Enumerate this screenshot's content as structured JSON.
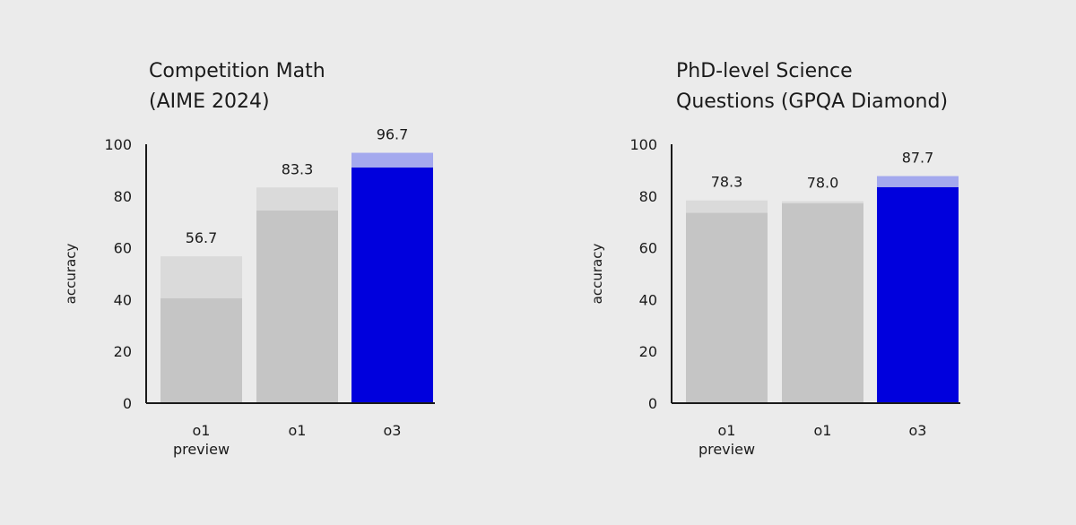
{
  "colors": {
    "background": "#ebebeb",
    "grey_base": "#c5c5c5",
    "grey_top": "#dadada",
    "highlight_base": "#0000dd",
    "highlight_top": "#a4a9ee",
    "axis": "#1a1a1a"
  },
  "chart_data": [
    {
      "type": "bar",
      "title": [
        "Competition Math",
        "(AIME 2024)"
      ],
      "ylabel": "accuracy",
      "ylim": [
        0,
        100
      ],
      "yticks": [
        0,
        20,
        40,
        60,
        80,
        100
      ],
      "categories": [
        [
          "o1",
          "preview"
        ],
        [
          "o1"
        ],
        [
          "o3"
        ]
      ],
      "values": [
        56.7,
        83.3,
        96.7
      ],
      "value_labels": [
        "56.7",
        "83.3",
        "96.7"
      ],
      "base_values": [
        40.5,
        74.4,
        91.0
      ],
      "highlight": [
        false,
        false,
        true
      ],
      "grid": false
    },
    {
      "type": "bar",
      "title": [
        "PhD-level Science",
        "Questions (GPQA Diamond)"
      ],
      "ylabel": "accuracy",
      "ylim": [
        0,
        100
      ],
      "yticks": [
        0,
        20,
        40,
        60,
        80,
        100
      ],
      "categories": [
        [
          "o1",
          "preview"
        ],
        [
          "o1"
        ],
        [
          "o3"
        ]
      ],
      "values": [
        78.3,
        78.0,
        87.7
      ],
      "value_labels": [
        "78.3",
        "78.0",
        "87.7"
      ],
      "base_values": [
        73.5,
        77.2,
        83.4
      ],
      "highlight": [
        false,
        false,
        true
      ],
      "grid": false
    }
  ]
}
